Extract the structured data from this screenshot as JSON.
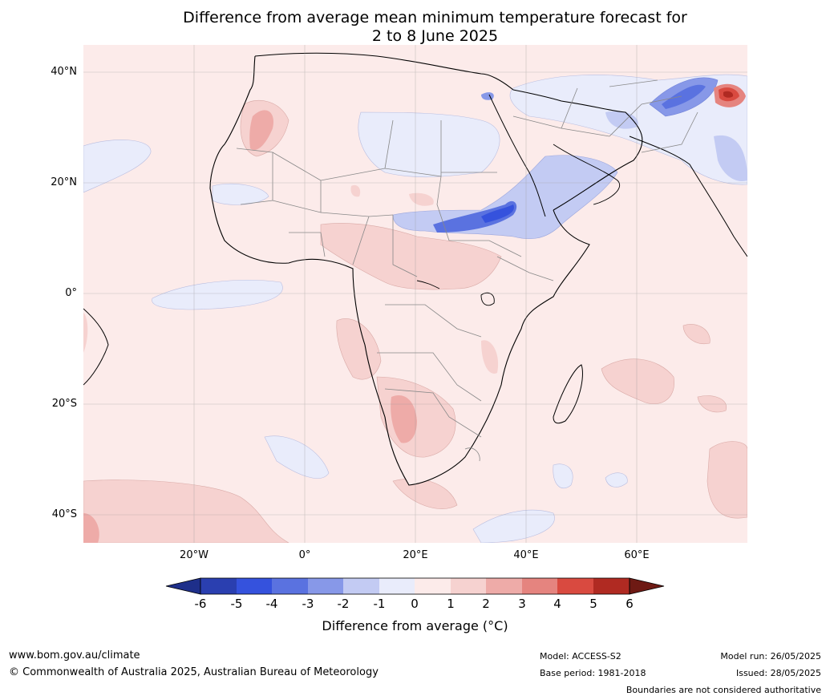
{
  "title": {
    "line1": "Difference from average mean minimum temperature forecast for",
    "line2": "2 to 8 June 2025"
  },
  "map": {
    "latitude_labels": [
      "40°N",
      "20°N",
      "0°",
      "20°S",
      "40°S"
    ],
    "longitude_labels": [
      "20°W",
      "0°",
      "20°E",
      "40°E",
      "60°E"
    ],
    "ocean_color": "#fcebea",
    "colors": {
      "neg6": "#1e2f8a",
      "neg5": "#2a3fb0",
      "neg4": "#3552dd",
      "neg3": "#5a72e0",
      "neg2": "#8798e8",
      "neg1": "#c3cbf3",
      "zero": "#e9ecfb",
      "pos0": "#fcebea",
      "pos1": "#f6d2d0",
      "pos2": "#eeaba8",
      "pos3": "#e5847f",
      "pos4": "#d94a40",
      "pos5": "#b02a22",
      "pos6": "#6e1a14"
    }
  },
  "colorbar": {
    "ticks": [
      "-6",
      "-5",
      "-4",
      "-3",
      "-2",
      "-1",
      "0",
      "1",
      "2",
      "3",
      "4",
      "5",
      "6"
    ],
    "label": "Difference from average (°C)"
  },
  "footer": {
    "website": "www.bom.gov.au/climate",
    "copyright": "© Commonwealth of Australia 2025, Australian Bureau of Meteorology",
    "model": "Model: ACCESS-S2",
    "base_period": "Base period: 1981-2018",
    "model_run": "Model run: 26/05/2025",
    "issued": "Issued: 28/05/2025",
    "disclaimer": "Boundaries are not considered authoritative"
  }
}
